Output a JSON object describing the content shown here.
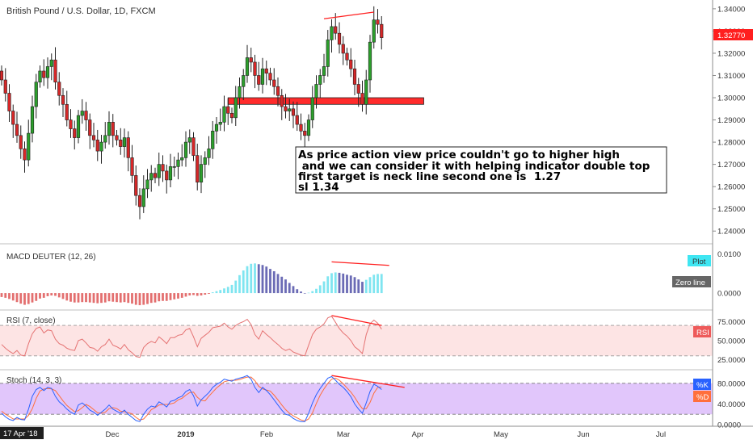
{
  "header": {
    "symbol_title": "British Pound / U.S. Dollar, 1D, FXCM"
  },
  "annotation": {
    "lines": [
      "As price action view price couldn't go to higher high",
      " and we can consider it with helping indicator double top",
      "first target is neck line second one is  1.27",
      "sl 1.34"
    ]
  },
  "price_axis": {
    "ticks": [
      "1.34000",
      "1.33000",
      "1.32000",
      "1.31000",
      "1.30000",
      "1.29000",
      "1.28000",
      "1.27000",
      "1.26000",
      "1.25000",
      "1.24000"
    ],
    "last_price": "1.32770"
  },
  "indicators": {
    "macd": {
      "title": "MACD DEUTER (12, 26)",
      "ticks": [
        "0.0100",
        "0.0000"
      ],
      "badge_plot": "Plot",
      "badge_zero": "Zero line"
    },
    "rsi": {
      "title": "RSI (7, close)",
      "ticks": [
        "75.0000",
        "50.0000",
        "25.0000"
      ],
      "badge": "RSI"
    },
    "stoch": {
      "title": "Stoch (14, 3, 3)",
      "ticks": [
        "80.0000",
        "40.0000",
        "0.0000"
      ],
      "badge_k": "%K",
      "badge_d": "%D"
    }
  },
  "time_axis": {
    "current_date": "17 Apr '18",
    "labels": [
      "Dec",
      "2019",
      "Feb",
      "Mar",
      "Apr",
      "May",
      "Jun",
      "Jul"
    ]
  },
  "colors": {
    "bull": "#2ca02c",
    "bear": "#d62728",
    "resistance_line": "#ff2020",
    "zone": "#ff2b2b",
    "macd_pos_light": "#7fe5f0",
    "macd_pos_dark": "#6b6bb5",
    "macd_neg": "#e36f6f",
    "rsi_line": "#e57373",
    "rsi_bg": "#fde4e4",
    "stoch_k": "#2962ff",
    "stoch_d": "#ff6f3c",
    "stoch_bg": "#e1c6fb"
  },
  "chart_data": {
    "type": "candlestick",
    "xlabel": "",
    "ylabel": "",
    "ylim": [
      1.235,
      1.3425
    ],
    "x_labels": [
      "Dec",
      "2019",
      "Feb",
      "Mar",
      "Apr",
      "May",
      "Jun",
      "Jul"
    ],
    "closes": [
      1.308,
      1.302,
      1.294,
      1.288,
      1.283,
      1.277,
      1.272,
      1.284,
      1.296,
      1.307,
      1.312,
      1.309,
      1.314,
      1.317,
      1.307,
      1.301,
      1.297,
      1.29,
      1.286,
      1.282,
      1.292,
      1.294,
      1.29,
      1.283,
      1.281,
      1.276,
      1.28,
      1.283,
      1.289,
      1.283,
      1.281,
      1.278,
      1.282,
      1.273,
      1.265,
      1.256,
      1.251,
      1.259,
      1.263,
      1.266,
      1.264,
      1.27,
      1.267,
      1.263,
      1.269,
      1.269,
      1.272,
      1.273,
      1.28,
      1.282,
      1.274,
      1.262,
      1.27,
      1.273,
      1.277,
      1.285,
      1.288,
      1.289,
      1.296,
      1.293,
      1.291,
      1.3,
      1.305,
      1.31,
      1.318,
      1.316,
      1.31,
      1.306,
      1.313,
      1.311,
      1.308,
      1.305,
      1.301,
      1.296,
      1.294,
      1.295,
      1.292,
      1.288,
      1.285,
      1.283,
      1.29,
      1.3,
      1.306,
      1.31,
      1.314,
      1.326,
      1.332,
      1.329,
      1.324,
      1.32,
      1.317,
      1.313,
      1.306,
      1.302,
      1.297,
      1.308,
      1.325,
      1.335,
      1.333,
      1.327
    ],
    "zone": {
      "from_index": 59,
      "to_index": 110,
      "low": 1.297,
      "high": 1.3
    },
    "resistance": [
      {
        "index": 84,
        "value": 1.3355
      },
      {
        "index": 97,
        "value": 1.3385
      }
    ],
    "macd": [
      -0.001,
      -0.0012,
      -0.0015,
      -0.0019,
      -0.0023,
      -0.0027,
      -0.003,
      -0.0028,
      -0.0024,
      -0.002,
      -0.0014,
      -0.0012,
      -0.0008,
      -0.0006,
      -0.0007,
      -0.0011,
      -0.0015,
      -0.0019,
      -0.0022,
      -0.0024,
      -0.0024,
      -0.0023,
      -0.0023,
      -0.0024,
      -0.0025,
      -0.0026,
      -0.0025,
      -0.0024,
      -0.0021,
      -0.0022,
      -0.0023,
      -0.0024,
      -0.0023,
      -0.0025,
      -0.0027,
      -0.003,
      -0.0031,
      -0.003,
      -0.0028,
      -0.0025,
      -0.0024,
      -0.0021,
      -0.002,
      -0.002,
      -0.0018,
      -0.0016,
      -0.0014,
      -0.0012,
      -0.0009,
      -0.0006,
      -0.0005,
      -0.0007,
      -0.0006,
      -0.0004,
      -0.0002,
      0.0002,
      0.0005,
      0.0008,
      0.0012,
      0.0016,
      0.0021,
      0.0032,
      0.0046,
      0.0058,
      0.0069,
      0.0075,
      0.0076,
      0.0074,
      0.0072,
      0.0068,
      0.0062,
      0.0056,
      0.0049,
      0.0042,
      0.0035,
      0.0026,
      0.0018,
      0.001,
      0.0004,
      0.0,
      0.0001,
      0.0005,
      0.0011,
      0.002,
      0.003,
      0.0043,
      0.0051,
      0.0053,
      0.0052,
      0.005,
      0.0047,
      0.0045,
      0.0041,
      0.0035,
      0.0029,
      0.0034,
      0.0041,
      0.0047,
      0.0049,
      0.0049
    ],
    "rsi": [
      45,
      40,
      36,
      33,
      37,
      31,
      30,
      46,
      59,
      66,
      68,
      60,
      64,
      63,
      52,
      46,
      44,
      40,
      38,
      37,
      50,
      52,
      47,
      41,
      40,
      36,
      42,
      45,
      52,
      44,
      42,
      39,
      45,
      38,
      34,
      29,
      28,
      41,
      46,
      49,
      47,
      55,
      51,
      46,
      54,
      54,
      57,
      58,
      64,
      66,
      55,
      42,
      53,
      57,
      61,
      67,
      68,
      69,
      73,
      68,
      65,
      70,
      73,
      75,
      78,
      71,
      58,
      52,
      63,
      58,
      54,
      49,
      45,
      40,
      37,
      39,
      35,
      33,
      31,
      30,
      44,
      58,
      65,
      68,
      72,
      80,
      82,
      74,
      66,
      60,
      56,
      50,
      42,
      38,
      33,
      58,
      72,
      77,
      73,
      65
    ],
    "stoch_k": [
      22,
      15,
      10,
      8,
      14,
      10,
      9,
      30,
      55,
      68,
      72,
      66,
      72,
      70,
      55,
      44,
      38,
      30,
      24,
      20,
      38,
      42,
      36,
      28,
      24,
      18,
      24,
      30,
      38,
      30,
      26,
      22,
      28,
      20,
      14,
      8,
      6,
      20,
      30,
      36,
      34,
      44,
      40,
      34,
      45,
      47,
      52,
      55,
      64,
      68,
      56,
      36,
      48,
      55,
      62,
      72,
      78,
      82,
      88,
      86,
      84,
      88,
      90,
      92,
      95,
      88,
      72,
      62,
      72,
      66,
      58,
      48,
      38,
      28,
      20,
      18,
      12,
      8,
      6,
      6,
      22,
      42,
      58,
      70,
      80,
      90,
      93,
      86,
      78,
      72,
      64,
      54,
      40,
      30,
      22,
      42,
      64,
      78,
      74,
      68
    ],
    "stoch_d": [
      26,
      20,
      16,
      11,
      11,
      11,
      11,
      18,
      31,
      51,
      65,
      69,
      70,
      69,
      66,
      56,
      46,
      37,
      31,
      25,
      27,
      33,
      39,
      35,
      29,
      23,
      22,
      24,
      31,
      33,
      31,
      26,
      25,
      23,
      21,
      14,
      9,
      11,
      19,
      29,
      33,
      38,
      39,
      39,
      40,
      42,
      48,
      51,
      57,
      62,
      63,
      53,
      47,
      46,
      55,
      63,
      71,
      77,
      83,
      85,
      86,
      86,
      87,
      90,
      92,
      92,
      85,
      74,
      69,
      67,
      65,
      57,
      48,
      38,
      29,
      22,
      17,
      13,
      9,
      7,
      11,
      23,
      41,
      57,
      69,
      80,
      88,
      90,
      86,
      79,
      71,
      63,
      53,
      41,
      31,
      31,
      43,
      61,
      72,
      73
    ],
    "rsi_levels": [
      70,
      30
    ],
    "stoch_levels": [
      80,
      20
    ]
  }
}
